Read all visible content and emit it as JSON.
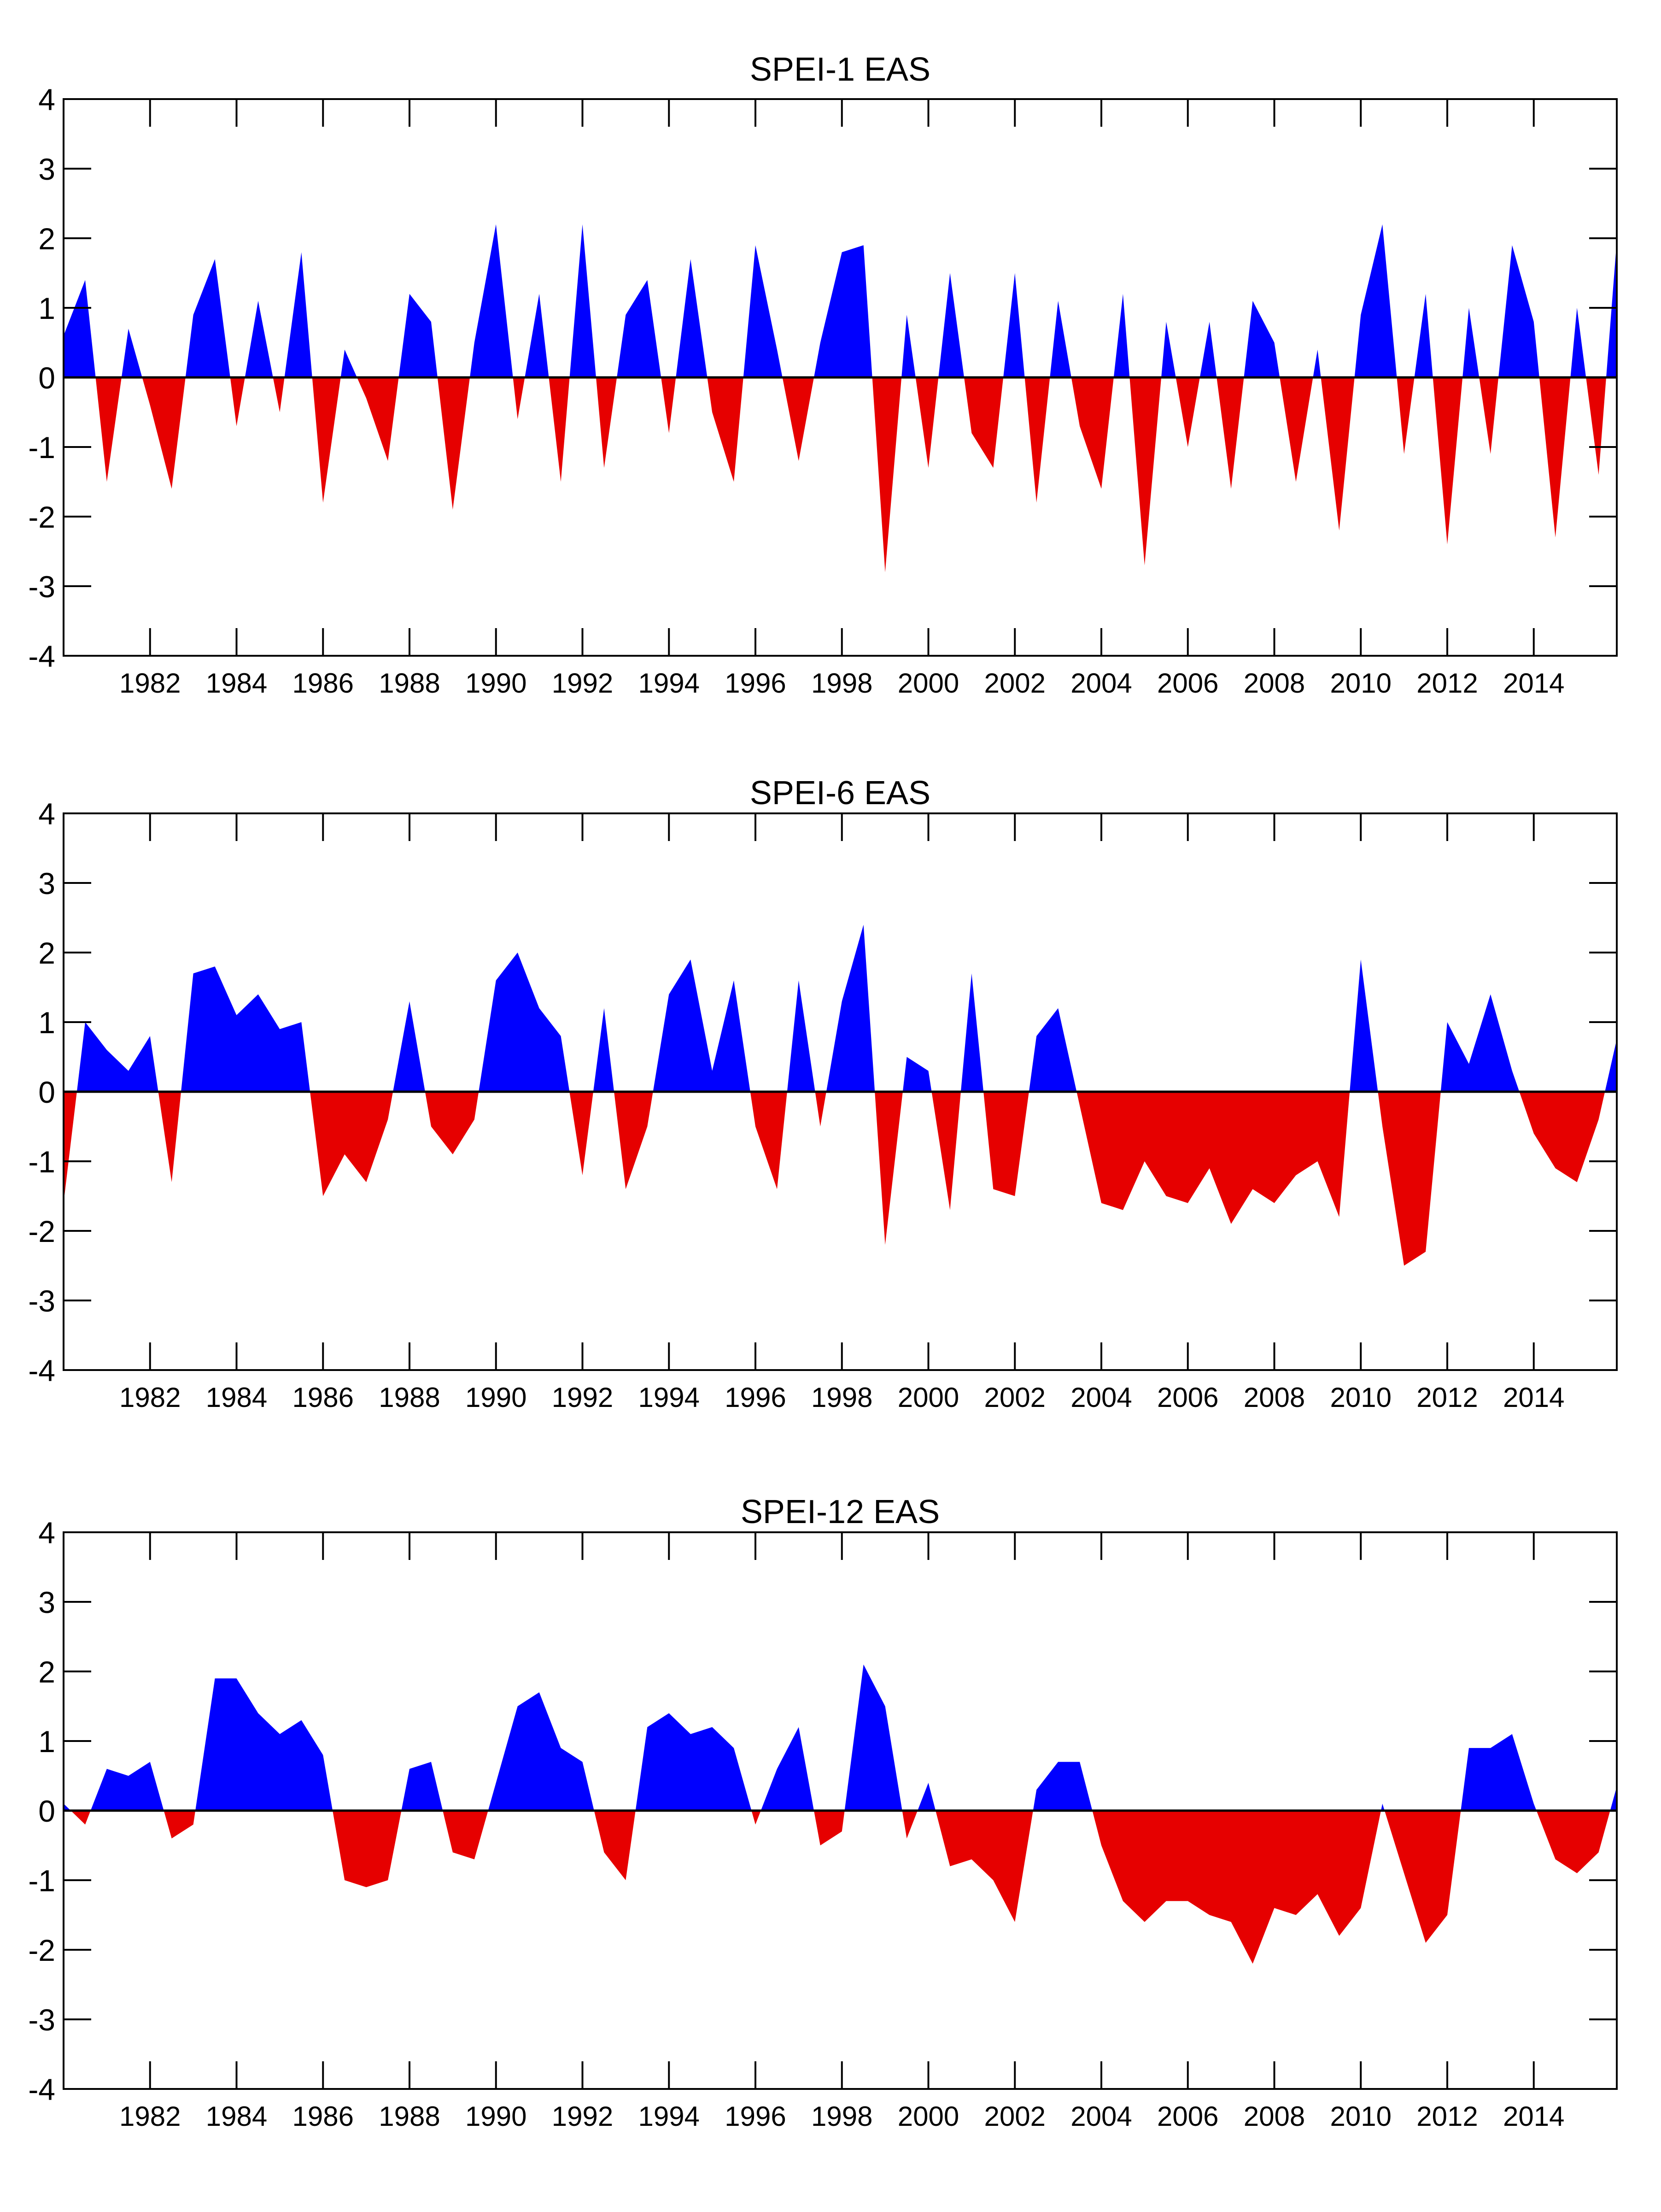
{
  "chart_data": [
    {
      "type": "area",
      "title": "SPEI-1 EAS",
      "xlabel": "",
      "ylabel": "",
      "xlim": [
        1980.0,
        2015.92
      ],
      "ylim": [
        -4,
        4
      ],
      "yticks": [
        -4,
        -3,
        -2,
        -1,
        0,
        1,
        2,
        3,
        4
      ],
      "xticks": [
        1982,
        1984,
        1986,
        1988,
        1990,
        1992,
        1994,
        1996,
        1998,
        2000,
        2002,
        2004,
        2006,
        2008,
        2010,
        2012,
        2014
      ],
      "grid": false,
      "colors": {
        "positive": "#0000ff",
        "negative": "#e60000"
      },
      "x": [
        1980.0,
        1980.5,
        1981.0,
        1981.5,
        1982.0,
        1982.5,
        1983.0,
        1983.5,
        1984.0,
        1984.5,
        1985.0,
        1985.5,
        1986.0,
        1986.5,
        1987.0,
        1987.5,
        1988.0,
        1988.5,
        1989.0,
        1989.5,
        1990.0,
        1990.5,
        1991.0,
        1991.5,
        1992.0,
        1992.5,
        1993.0,
        1993.5,
        1994.0,
        1994.5,
        1995.0,
        1995.5,
        1996.0,
        1996.5,
        1997.0,
        1997.5,
        1998.0,
        1998.5,
        1999.0,
        1999.5,
        2000.0,
        2000.5,
        2001.0,
        2001.5,
        2002.0,
        2002.5,
        2003.0,
        2003.5,
        2004.0,
        2004.5,
        2005.0,
        2005.5,
        2006.0,
        2006.5,
        2007.0,
        2007.5,
        2008.0,
        2008.5,
        2009.0,
        2009.5,
        2010.0,
        2010.5,
        2011.0,
        2011.5,
        2012.0,
        2012.5,
        2013.0,
        2013.5,
        2014.0,
        2014.5,
        2015.0,
        2015.5,
        2015.9
      ],
      "values": [
        0.6,
        1.4,
        -1.5,
        0.7,
        -0.4,
        -1.6,
        0.9,
        1.7,
        -0.7,
        1.1,
        -0.5,
        1.8,
        -1.8,
        0.4,
        -0.3,
        -1.2,
        1.2,
        0.8,
        -1.9,
        0.5,
        2.2,
        -0.6,
        1.2,
        -1.5,
        2.2,
        -1.3,
        0.9,
        1.4,
        -0.8,
        1.7,
        -0.5,
        -1.5,
        1.9,
        0.4,
        -1.2,
        0.5,
        1.8,
        1.9,
        -2.8,
        0.9,
        -1.3,
        1.5,
        -0.8,
        -1.3,
        1.5,
        -1.8,
        1.1,
        -0.7,
        -1.6,
        1.2,
        -2.7,
        0.8,
        -1.0,
        0.8,
        -1.6,
        1.1,
        0.5,
        -1.5,
        0.4,
        -2.2,
        0.9,
        2.2,
        -1.1,
        1.2,
        -2.4,
        1.0,
        -1.1,
        1.9,
        0.8,
        -2.3,
        1.0,
        -1.4,
        1.8
      ]
    },
    {
      "type": "area",
      "title": "SPEI-6 EAS",
      "xlabel": "",
      "ylabel": "",
      "xlim": [
        1980.0,
        2015.92
      ],
      "ylim": [
        -4,
        4
      ],
      "yticks": [
        -4,
        -3,
        -2,
        -1,
        0,
        1,
        2,
        3,
        4
      ],
      "xticks": [
        1982,
        1984,
        1986,
        1988,
        1990,
        1992,
        1994,
        1996,
        1998,
        2000,
        2002,
        2004,
        2006,
        2008,
        2010,
        2012,
        2014
      ],
      "grid": false,
      "colors": {
        "positive": "#0000ff",
        "negative": "#e60000"
      },
      "x": [
        1980.0,
        1980.5,
        1981.0,
        1981.5,
        1982.0,
        1982.5,
        1983.0,
        1983.5,
        1984.0,
        1984.5,
        1985.0,
        1985.5,
        1986.0,
        1986.5,
        1987.0,
        1987.5,
        1988.0,
        1988.5,
        1989.0,
        1989.5,
        1990.0,
        1990.5,
        1991.0,
        1991.5,
        1992.0,
        1992.5,
        1993.0,
        1993.5,
        1994.0,
        1994.5,
        1995.0,
        1995.5,
        1996.0,
        1996.5,
        1997.0,
        1997.5,
        1998.0,
        1998.5,
        1999.0,
        1999.5,
        2000.0,
        2000.5,
        2001.0,
        2001.5,
        2002.0,
        2002.5,
        2003.0,
        2003.5,
        2004.0,
        2004.5,
        2005.0,
        2005.5,
        2006.0,
        2006.5,
        2007.0,
        2007.5,
        2008.0,
        2008.5,
        2009.0,
        2009.5,
        2010.0,
        2010.5,
        2011.0,
        2011.5,
        2012.0,
        2012.5,
        2013.0,
        2013.5,
        2014.0,
        2014.5,
        2015.0,
        2015.5,
        2015.9
      ],
      "values": [
        -1.6,
        1.0,
        0.6,
        0.3,
        0.8,
        -1.3,
        1.7,
        1.8,
        1.1,
        1.4,
        0.9,
        1.0,
        -1.5,
        -0.9,
        -1.3,
        -0.4,
        1.3,
        -0.5,
        -0.9,
        -0.4,
        1.6,
        2.0,
        1.2,
        0.8,
        -1.2,
        1.2,
        -1.4,
        -0.5,
        1.4,
        1.9,
        0.3,
        1.6,
        -0.5,
        -1.4,
        1.6,
        -0.5,
        1.3,
        2.4,
        -2.2,
        0.5,
        0.3,
        -1.7,
        1.7,
        -1.4,
        -1.5,
        0.8,
        1.2,
        -0.2,
        -1.6,
        -1.7,
        -1.0,
        -1.5,
        -1.6,
        -1.1,
        -1.9,
        -1.4,
        -1.6,
        -1.2,
        -1.0,
        -1.8,
        1.9,
        -0.5,
        -2.5,
        -2.3,
        1.0,
        0.4,
        1.4,
        0.3,
        -0.6,
        -1.1,
        -1.3,
        -0.4,
        0.7
      ]
    },
    {
      "type": "area",
      "title": "SPEI-12 EAS",
      "xlabel": "",
      "ylabel": "",
      "xlim": [
        1980.0,
        2015.92
      ],
      "ylim": [
        -4,
        4
      ],
      "yticks": [
        -4,
        -3,
        -2,
        -1,
        0,
        1,
        2,
        3,
        4
      ],
      "xticks": [
        1982,
        1984,
        1986,
        1988,
        1990,
        1992,
        1994,
        1996,
        1998,
        2000,
        2002,
        2004,
        2006,
        2008,
        2010,
        2012,
        2014
      ],
      "grid": false,
      "colors": {
        "positive": "#0000ff",
        "negative": "#e60000"
      },
      "x": [
        1980.0,
        1980.5,
        1981.0,
        1981.5,
        1982.0,
        1982.5,
        1983.0,
        1983.5,
        1984.0,
        1984.5,
        1985.0,
        1985.5,
        1986.0,
        1986.5,
        1987.0,
        1987.5,
        1988.0,
        1988.5,
        1989.0,
        1989.5,
        1990.0,
        1990.5,
        1991.0,
        1991.5,
        1992.0,
        1992.5,
        1993.0,
        1993.5,
        1994.0,
        1994.5,
        1995.0,
        1995.5,
        1996.0,
        1996.5,
        1997.0,
        1997.5,
        1998.0,
        1998.5,
        1999.0,
        1999.5,
        2000.0,
        2000.5,
        2001.0,
        2001.5,
        2002.0,
        2002.5,
        2003.0,
        2003.5,
        2004.0,
        2004.5,
        2005.0,
        2005.5,
        2006.0,
        2006.5,
        2007.0,
        2007.5,
        2008.0,
        2008.5,
        2009.0,
        2009.5,
        2010.0,
        2010.5,
        2011.0,
        2011.5,
        2012.0,
        2012.5,
        2013.0,
        2013.5,
        2014.0,
        2014.5,
        2015.0,
        2015.5,
        2015.9
      ],
      "values": [
        0.1,
        -0.2,
        0.6,
        0.5,
        0.7,
        -0.4,
        -0.2,
        1.9,
        1.9,
        1.4,
        1.1,
        1.3,
        0.8,
        -1.0,
        -1.1,
        -1.0,
        0.6,
        0.7,
        -0.6,
        -0.7,
        0.4,
        1.5,
        1.7,
        0.9,
        0.7,
        -0.6,
        -1.0,
        1.2,
        1.4,
        1.1,
        1.2,
        0.9,
        -0.2,
        0.6,
        1.2,
        -0.5,
        -0.3,
        2.1,
        1.5,
        -0.4,
        0.4,
        -0.8,
        -0.7,
        -1.0,
        -1.6,
        0.3,
        0.7,
        0.7,
        -0.5,
        -1.3,
        -1.6,
        -1.3,
        -1.3,
        -1.5,
        -1.6,
        -2.2,
        -1.4,
        -1.5,
        -1.2,
        -1.8,
        -1.4,
        0.1,
        -0.9,
        -1.9,
        -1.5,
        0.9,
        0.9,
        1.1,
        0.1,
        -0.7,
        -0.9,
        -0.6,
        0.3
      ]
    }
  ]
}
